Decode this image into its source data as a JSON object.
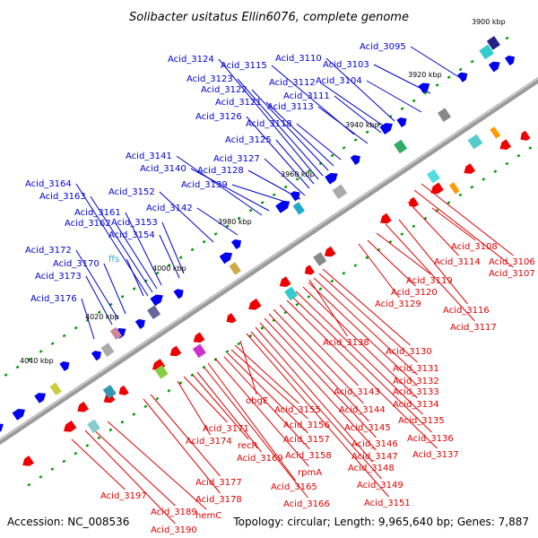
{
  "title": "Solibacter usitatus Ellin6076, complete genome",
  "accession": "Accession: NC_008536",
  "summary": "Topology: circular; Length: 9,965,640 bp; Genes: 7,887",
  "colors": {
    "top_label": "#0000cc",
    "bottom_label": "#dd0000",
    "rna_label": "#33aacc",
    "forward_gene": "#0000ee",
    "reverse_gene": "#ee0000",
    "backbone": "#888888",
    "tick": "#009900"
  },
  "ticks": [
    "3900 kbp",
    "3920 kbp",
    "3940 kbp",
    "3960 kbp",
    "3980 kbp",
    "4000 kbp",
    "4020 kbp",
    "4040 kbp"
  ],
  "top_labels": [
    "Acid_3095",
    "Acid_3103",
    "Acid_3104",
    "Acid_3110",
    "Acid_3111",
    "Acid_3112",
    "Acid_3113",
    "Acid_3115",
    "Acid_3118",
    "Acid_3121",
    "Acid_3122",
    "Acid_3123",
    "Acid_3124",
    "Acid_3125",
    "Acid_3126",
    "Acid_3127",
    "Acid_3128",
    "Acid_3139",
    "Acid_3140",
    "Acid_3141",
    "Acid_3142",
    "Acid_3152",
    "Acid_3153",
    "Acid_3154",
    "Acid_3161",
    "Acid_3162",
    "Acid_3163",
    "Acid_3164",
    "ffs",
    "Acid_3170",
    "Acid_3172",
    "Acid_3173",
    "Acid_3176"
  ],
  "bottom_labels": [
    "Acid_3106",
    "Acid_3107",
    "Acid_3108",
    "Acid_3114",
    "Acid_3116",
    "Acid_3117",
    "Acid_3119",
    "Acid_3120",
    "Acid_3129",
    "Acid_3130",
    "Acid_3131",
    "Acid_3132",
    "Acid_3133",
    "Acid_3134",
    "Acid_3135",
    "Acid_3136",
    "Acid_3137",
    "Acid_3138",
    "Acid_3143",
    "Acid_3144",
    "Acid_3145",
    "Acid_3146",
    "Acid_3147",
    "Acid_3148",
    "Acid_3149",
    "Acid_3151",
    "obgE",
    "Acid_3155",
    "Acid_3156",
    "Acid_3157",
    "Acid_3158",
    "rpmA",
    "Acid_3165",
    "Acid_3166",
    "Acid_3169",
    "recR",
    "Acid_3171",
    "Acid_3174",
    "Acid_3177",
    "Acid_3178",
    "hemC",
    "Acid_3189",
    "Acid_3190",
    "Acid_3197"
  ]
}
